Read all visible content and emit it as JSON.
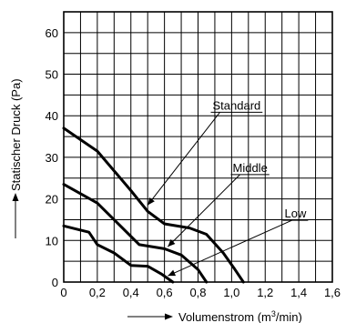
{
  "chart_data": {
    "type": "line",
    "xlabel": "Volumenstrom (m",
    "xlabel_sup": "3",
    "xlabel_suffix": "/min)",
    "ylabel": "Statischer Druck (Pa)",
    "xlim": [
      0,
      1.6
    ],
    "ylim": [
      0,
      65
    ],
    "x_ticks": [
      0,
      0.2,
      0.4,
      0.6,
      0.8,
      1.0,
      1.2,
      1.4,
      1.6
    ],
    "x_tick_labels": [
      "0",
      "0,2",
      "0,4",
      "0,6",
      "0,8",
      "1,0",
      "1,2",
      "1,4",
      "1,6"
    ],
    "y_ticks": [
      0,
      10,
      20,
      30,
      40,
      50,
      60
    ],
    "y_tick_labels": [
      "0",
      "10",
      "20",
      "30",
      "40",
      "50",
      "60"
    ],
    "grid": true,
    "series": [
      {
        "name": "Standard",
        "points": [
          [
            0,
            37
          ],
          [
            0.2,
            31.5
          ],
          [
            0.4,
            22
          ],
          [
            0.5,
            17
          ],
          [
            0.6,
            14
          ],
          [
            0.75,
            13
          ],
          [
            0.85,
            11.5
          ],
          [
            0.95,
            7
          ],
          [
            1.02,
            3
          ],
          [
            1.07,
            0
          ]
        ],
        "label_at": [
          1.03,
          41.5
        ],
        "leader_to": [
          0.5,
          18.5
        ]
      },
      {
        "name": "Middle",
        "points": [
          [
            0,
            23.5
          ],
          [
            0.2,
            19
          ],
          [
            0.35,
            13
          ],
          [
            0.45,
            9
          ],
          [
            0.6,
            8
          ],
          [
            0.7,
            6.5
          ],
          [
            0.8,
            3
          ],
          [
            0.85,
            0
          ]
        ],
        "label_at": [
          1.11,
          26.5
        ],
        "leader_to": [
          0.62,
          8.5
        ]
      },
      {
        "name": "Low",
        "points": [
          [
            0,
            13.5
          ],
          [
            0.15,
            12
          ],
          [
            0.2,
            9
          ],
          [
            0.3,
            7
          ],
          [
            0.4,
            4
          ],
          [
            0.5,
            3.8
          ],
          [
            0.58,
            2
          ],
          [
            0.65,
            0
          ]
        ],
        "label_at": [
          1.38,
          15.5
        ],
        "leader_to": [
          0.62,
          1.5
        ]
      }
    ]
  }
}
